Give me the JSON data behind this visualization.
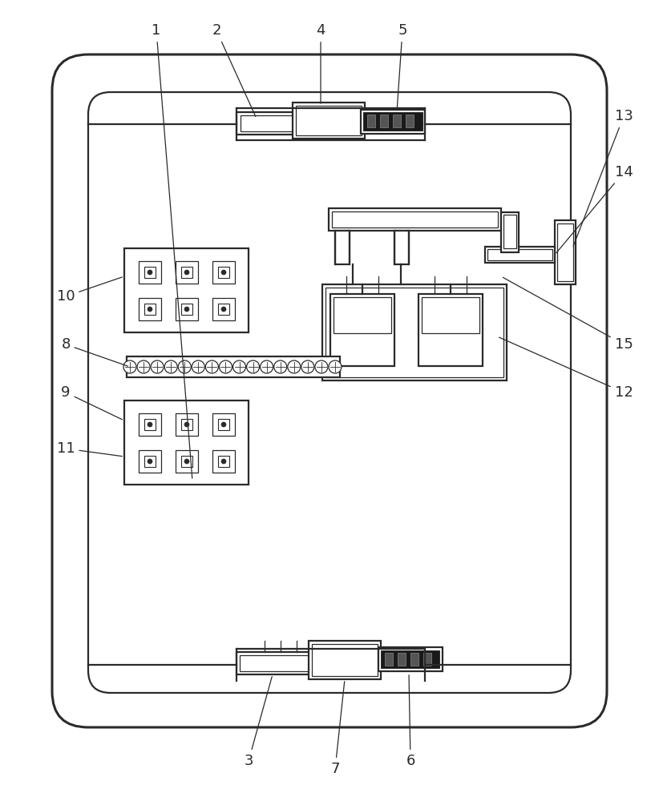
{
  "bg_color": "#ffffff",
  "line_color": "#2a2a2a",
  "lw_main": 1.6,
  "lw_thin": 0.9,
  "lw_thick": 2.2,
  "fig_w": 8.22,
  "fig_h": 10.0,
  "label_fontsize": 13
}
